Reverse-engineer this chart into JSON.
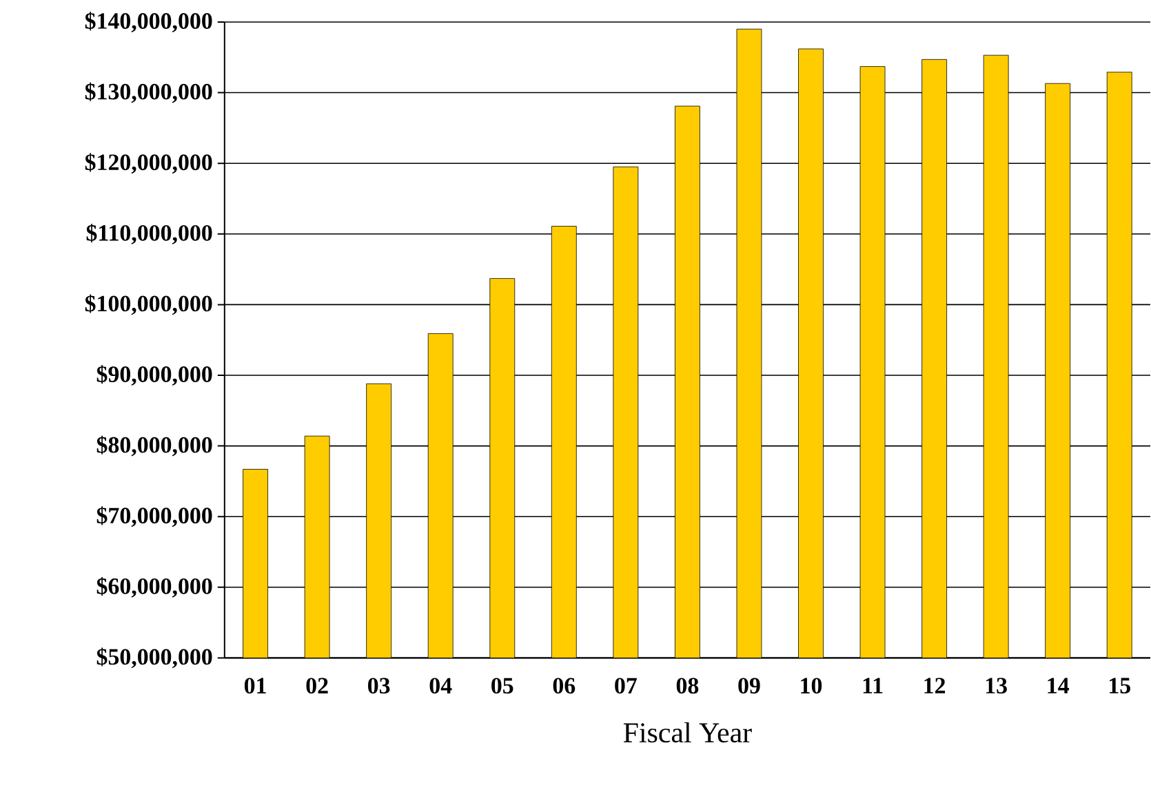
{
  "chart_data": {
    "type": "bar",
    "xlabel": "Fiscal Year",
    "categories": [
      "01",
      "02",
      "03",
      "04",
      "05",
      "06",
      "07",
      "08",
      "09",
      "10",
      "11",
      "12",
      "13",
      "14",
      "15"
    ],
    "values": [
      76700000,
      81400000,
      88800000,
      95900000,
      103700000,
      111100000,
      119500000,
      128100000,
      139000000,
      136200000,
      133700000,
      134700000,
      135300000,
      131300000,
      132900000
    ],
    "color": "#ffcc00",
    "ylim": [
      50000000,
      140000000
    ],
    "yticks": [
      {
        "value": 50000000,
        "label": "$50,000,000"
      },
      {
        "value": 60000000,
        "label": "$60,000,000"
      },
      {
        "value": 70000000,
        "label": "$70,000,000"
      },
      {
        "value": 80000000,
        "label": "$80,000,000"
      },
      {
        "value": 90000000,
        "label": "$90,000,000"
      },
      {
        "value": 100000000,
        "label": "$100,000,000"
      },
      {
        "value": 110000000,
        "label": "$110,000,000"
      },
      {
        "value": 120000000,
        "label": "$120,000,000"
      },
      {
        "value": 130000000,
        "label": "$130,000,000"
      },
      {
        "value": 140000000,
        "label": "$140,000,000"
      }
    ],
    "grid": "y"
  }
}
